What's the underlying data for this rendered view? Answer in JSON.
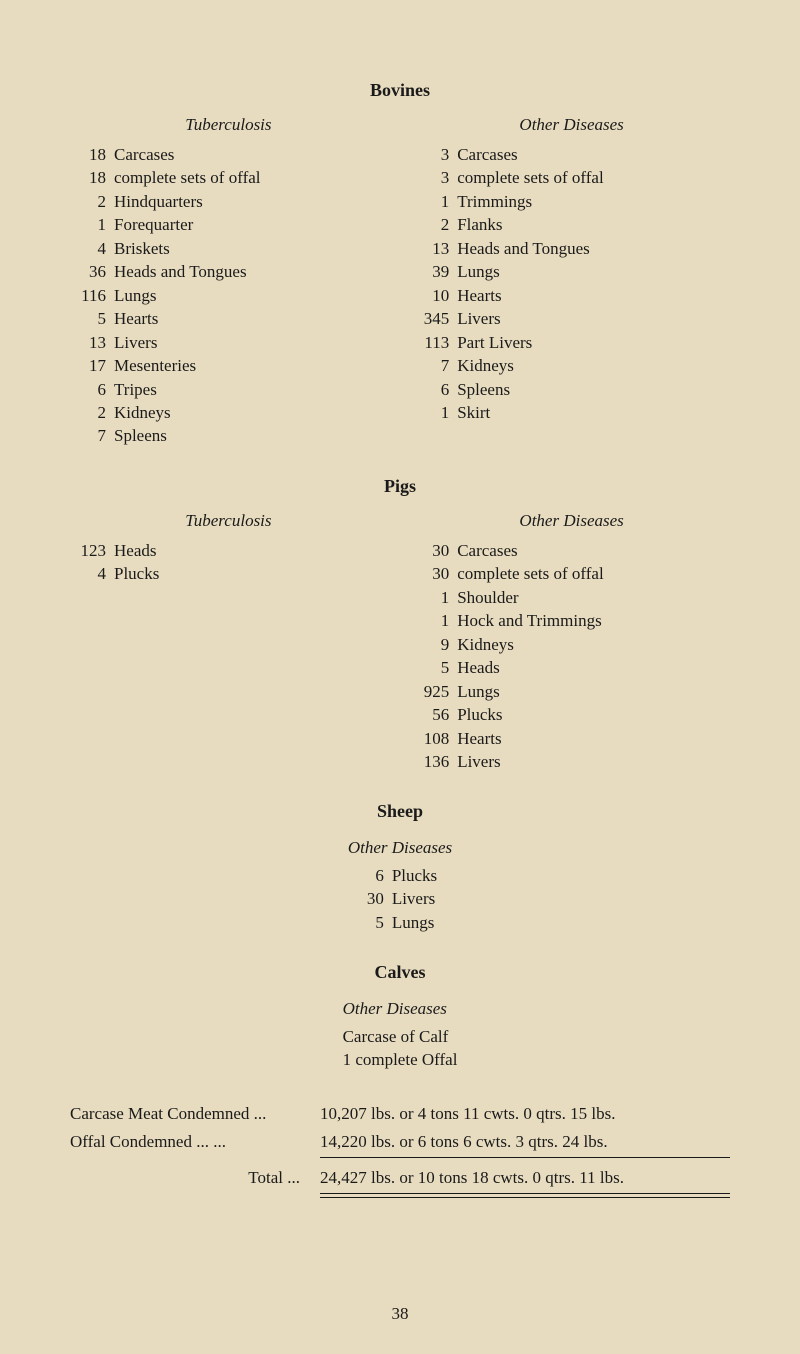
{
  "bovines": {
    "title": "Bovines",
    "left": {
      "heading": "Tuberculosis",
      "items": [
        {
          "n": "18",
          "label": "Carcases"
        },
        {
          "n": "18",
          "label": "complete sets of offal"
        },
        {
          "n": "2",
          "label": "Hindquarters"
        },
        {
          "n": "1",
          "label": "Forequarter"
        },
        {
          "n": "4",
          "label": "Briskets"
        },
        {
          "n": "36",
          "label": "Heads and Tongues"
        },
        {
          "n": "116",
          "label": "Lungs"
        },
        {
          "n": "5",
          "label": "Hearts"
        },
        {
          "n": "13",
          "label": "Livers"
        },
        {
          "n": "17",
          "label": "Mesenteries"
        },
        {
          "n": "6",
          "label": "Tripes"
        },
        {
          "n": "2",
          "label": "Kidneys"
        },
        {
          "n": "7",
          "label": "Spleens"
        }
      ]
    },
    "right": {
      "heading": "Other Diseases",
      "items": [
        {
          "n": "3",
          "label": "Carcases"
        },
        {
          "n": "3",
          "label": "complete sets of offal"
        },
        {
          "n": "1",
          "label": "Trimmings"
        },
        {
          "n": "2",
          "label": "Flanks"
        },
        {
          "n": "13",
          "label": "Heads and Tongues"
        },
        {
          "n": "39",
          "label": "Lungs"
        },
        {
          "n": "10",
          "label": "Hearts"
        },
        {
          "n": "345",
          "label": "Livers"
        },
        {
          "n": "113",
          "label": "Part Livers"
        },
        {
          "n": "7",
          "label": "Kidneys"
        },
        {
          "n": "6",
          "label": "Spleens"
        },
        {
          "n": "1",
          "label": "Skirt"
        }
      ]
    }
  },
  "pigs": {
    "title": "Pigs",
    "left": {
      "heading": "Tuberculosis",
      "items": [
        {
          "n": "123",
          "label": "Heads"
        },
        {
          "n": "4",
          "label": "Plucks"
        }
      ]
    },
    "right": {
      "heading": "Other Diseases",
      "items": [
        {
          "n": "30",
          "label": "Carcases"
        },
        {
          "n": "30",
          "label": "complete sets of offal"
        },
        {
          "n": "1",
          "label": "Shoulder"
        },
        {
          "n": "1",
          "label": "Hock and Trimmings"
        },
        {
          "n": "9",
          "label": "Kidneys"
        },
        {
          "n": "5",
          "label": "Heads"
        },
        {
          "n": "925",
          "label": "Lungs"
        },
        {
          "n": "56",
          "label": "Plucks"
        },
        {
          "n": "108",
          "label": "Hearts"
        },
        {
          "n": "136",
          "label": "Livers"
        }
      ]
    }
  },
  "sheep": {
    "title": "Sheep",
    "heading": "Other Diseases",
    "items": [
      {
        "n": "6",
        "label": "Plucks"
      },
      {
        "n": "30",
        "label": "Livers"
      },
      {
        "n": "5",
        "label": "Lungs"
      }
    ]
  },
  "calves": {
    "title": "Calves",
    "heading": "Other Diseases",
    "line1": "Carcase of Calf",
    "line2": "1 complete Offal"
  },
  "summary": {
    "rows": [
      {
        "label": "Carcase Meat Condemned   ...",
        "value": "10,207 lbs. or  4 tons 11 cwts. 0 qtrs. 15 lbs."
      },
      {
        "label": "Offal Condemned       ...       ...",
        "value": "14,220 lbs. or  6 tons  6 cwts. 3 qtrs. 24 lbs."
      }
    ],
    "total": {
      "label": "Total   ...",
      "value": "24,427 lbs. or 10 tons 18 cwts. 0 qtrs. 11 lbs."
    }
  },
  "page_number": "38"
}
